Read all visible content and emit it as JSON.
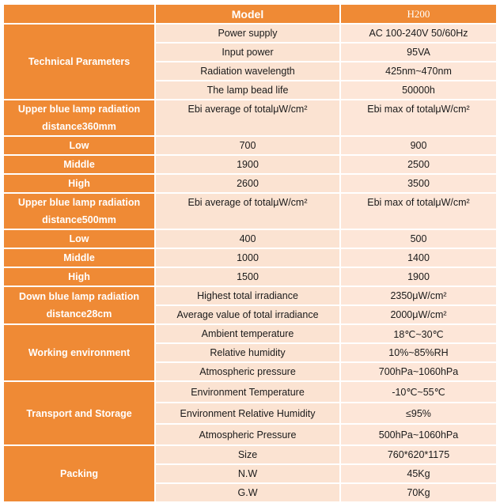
{
  "header": {
    "label": "Model",
    "value": "H200"
  },
  "sections": {
    "technical": {
      "title": "Technical Parameters",
      "rows": [
        {
          "label": "Power supply",
          "value": "AC 100-240V 50/60Hz"
        },
        {
          "label": "Input power",
          "value": "95VA"
        },
        {
          "label": "Radiation wavelength",
          "value": "425nm~470nm"
        },
        {
          "label": "The lamp bead life",
          "value": "50000h"
        }
      ]
    },
    "upper360": {
      "title": "Upper blue lamp radiation distance360mm",
      "col_avg": "Ebi average of totalμW/cm²",
      "col_max": "Ebi max of totalμW/cm²",
      "rows": [
        {
          "level": "Low",
          "avg": "700",
          "max": "900"
        },
        {
          "level": "Middle",
          "avg": "1900",
          "max": "2500"
        },
        {
          "level": "High",
          "avg": "2600",
          "max": "3500"
        }
      ]
    },
    "upper500": {
      "title": "Upper blue lamp radiation distance500mm",
      "col_avg": "Ebi average of totalμW/cm²",
      "col_max": "Ebi max of totalμW/cm²",
      "rows": [
        {
          "level": "Low",
          "avg": "400",
          "max": "500"
        },
        {
          "level": "Middle",
          "avg": "1000",
          "max": "1400"
        },
        {
          "level": "High",
          "avg": "1500",
          "max": "1900"
        }
      ]
    },
    "down": {
      "title": "Down blue lamp radiation distance28cm",
      "rows": [
        {
          "label": "Highest total irradiance",
          "value": "2350μW/cm²"
        },
        {
          "label": "Average value of total irradiance",
          "value": "2000μW/cm²"
        }
      ]
    },
    "working": {
      "title": "Working environment",
      "rows": [
        {
          "label": "Ambient temperature",
          "value": "18℃~30℃"
        },
        {
          "label": "Relative humidity",
          "value": "10%~85%RH"
        },
        {
          "label": "Atmospheric pressure",
          "value": "700hPa~1060hPa"
        }
      ]
    },
    "transport": {
      "title": "Transport and Storage",
      "rows": [
        {
          "label": "Environment Temperature",
          "value": "-10℃~55℃"
        },
        {
          "label": "Environment Relative Humidity",
          "value": "≤95%"
        },
        {
          "label": "Atmospheric Pressure",
          "value": "500hPa~1060hPa"
        }
      ]
    },
    "packing": {
      "title": "Packing",
      "rows": [
        {
          "label": "Size",
          "value": "760*620*1175"
        },
        {
          "label": "N.W",
          "value": "45Kg"
        },
        {
          "label": "G.W",
          "value": "70Kg"
        }
      ]
    }
  },
  "colors": {
    "header_bg": "#ef8a35",
    "label_bg": "#fbe3d2",
    "value_bg": "#fde6d8",
    "text": "#1a1a1a"
  }
}
